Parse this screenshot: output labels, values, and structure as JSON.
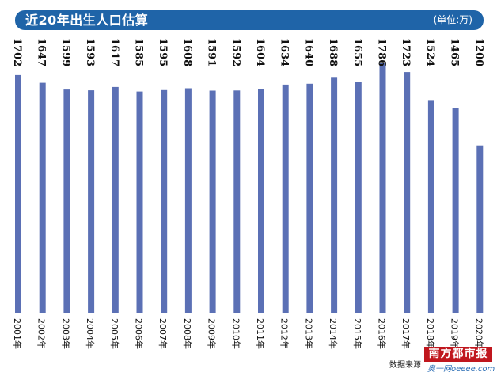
{
  "header": {
    "title": "近20年出生人口估算",
    "unit": "(单位:万)"
  },
  "chart_data": {
    "type": "bar",
    "title": "近20年出生人口估算",
    "unit": "(单位:万)",
    "categories": [
      "2001年",
      "2002年",
      "2003年",
      "2004年",
      "2005年",
      "2006年",
      "2007年",
      "2008年",
      "2009年",
      "2010年",
      "2011年",
      "2012年",
      "2013年",
      "2014年",
      "2015年",
      "2016年",
      "2017年",
      "2018年",
      "2019年",
      "2020年"
    ],
    "values": [
      1702,
      1647,
      1599,
      1593,
      1617,
      1585,
      1595,
      1608,
      1591,
      1592,
      1604,
      1634,
      1640,
      1688,
      1655,
      1786,
      1723,
      1524,
      1465,
      1200
    ],
    "value_labels": [
      "1702",
      "1647",
      "1599",
      "1593",
      "1617",
      "1585",
      "1595",
      "1608",
      "1591",
      "1592",
      "1604",
      "1634",
      "1640",
      "1688",
      "1655",
      "1786",
      "1723",
      "1524",
      "1465",
      "1200"
    ],
    "ylim": [
      0,
      1786
    ],
    "grid": false,
    "legend": "none",
    "bar_color": "#5b70b5",
    "header_color": "#1f64a8"
  },
  "footer": {
    "source": "数据来源",
    "logo_text": "南方都市报",
    "watermark": "奥一网oeeee.com"
  }
}
